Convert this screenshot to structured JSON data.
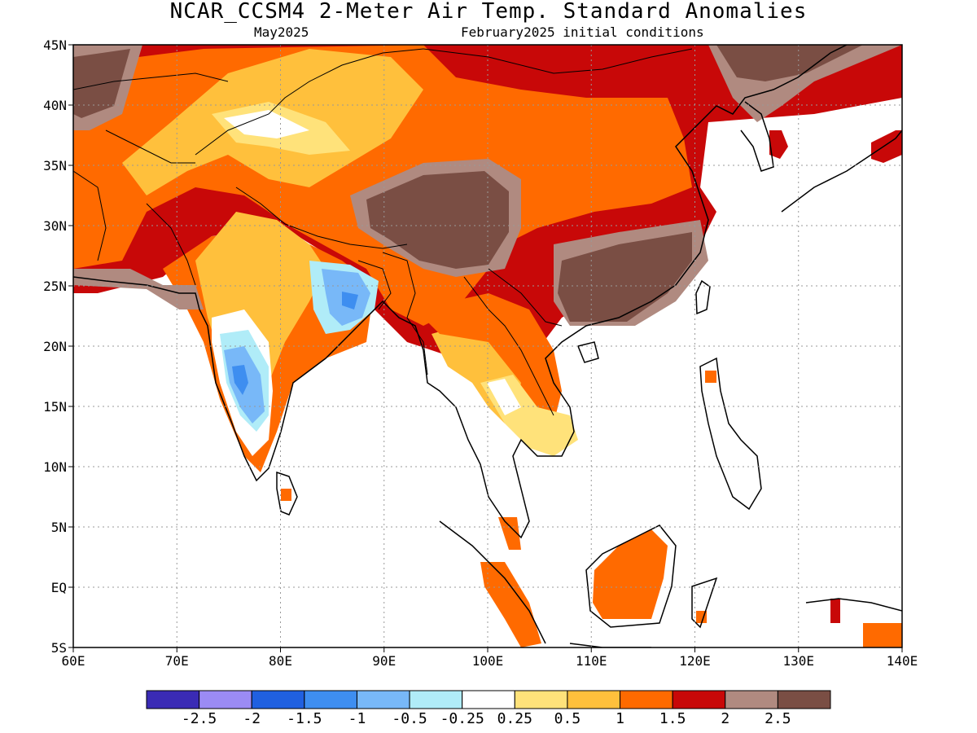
{
  "title": "NCAR_CCSM4 2-Meter Air Temp. Standard Anomalies",
  "subtitle_left": "May2025",
  "subtitle_right": "February2025 initial conditions",
  "map": {
    "lon_range": [
      60,
      140
    ],
    "lat_range": [
      -5,
      45
    ],
    "lon_ticks": [
      {
        "value": 60,
        "label": "60E"
      },
      {
        "value": 70,
        "label": "70E"
      },
      {
        "value": 80,
        "label": "80E"
      },
      {
        "value": 90,
        "label": "90E"
      },
      {
        "value": 100,
        "label": "100E"
      },
      {
        "value": 110,
        "label": "110E"
      },
      {
        "value": 120,
        "label": "120E"
      },
      {
        "value": 130,
        "label": "130E"
      },
      {
        "value": 140,
        "label": "140E"
      }
    ],
    "lat_ticks": [
      {
        "value": 45,
        "label": "45N"
      },
      {
        "value": 40,
        "label": "40N"
      },
      {
        "value": 35,
        "label": "35N"
      },
      {
        "value": 30,
        "label": "30N"
      },
      {
        "value": 25,
        "label": "25N"
      },
      {
        "value": 20,
        "label": "20N"
      },
      {
        "value": 15,
        "label": "15N"
      },
      {
        "value": 10,
        "label": "10N"
      },
      {
        "value": 5,
        "label": "5N"
      },
      {
        "value": 0,
        "label": "EQ"
      },
      {
        "value": -5,
        "label": "5S"
      }
    ],
    "grid": true
  },
  "colorbar": {
    "colors": [
      "#3a2bb5",
      "#9b8bf4",
      "#2060e0",
      "#3e8ef0",
      "#78b8f8",
      "#b0ecf8",
      "#ffffff",
      "#ffe27a",
      "#ffc03c",
      "#ff6a00",
      "#c80808",
      "#b08a80",
      "#7a4e44"
    ],
    "labels": [
      "-2.5",
      "-2",
      "-1.5",
      "-1",
      "-0.5",
      "-0.25",
      "0.25",
      "0.5",
      "1",
      "1.5",
      "2",
      "2.5"
    ]
  },
  "colors": {
    "dark_brown": "#7a4e44",
    "light_brown": "#b08a80",
    "dark_red": "#c80808",
    "orange": "#ff6a00",
    "light_orange": "#ffc03c",
    "yellow": "#ffe27a",
    "white": "#ffffff",
    "pale_cyan": "#b0ecf8",
    "light_blue": "#78b8f8",
    "blue": "#3e8ef0"
  }
}
